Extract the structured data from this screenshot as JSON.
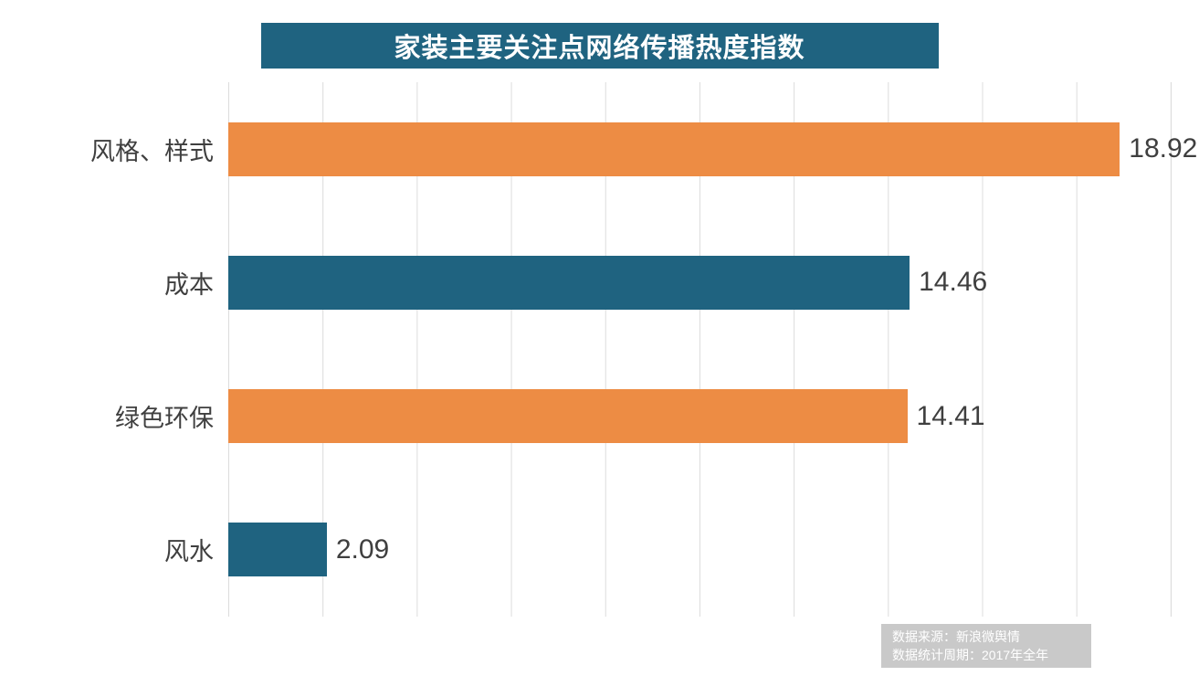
{
  "title_banner": {
    "text": "家装主要关注点网络传播热度指数",
    "background": "#1F6380",
    "text_color": "#FFFFFF"
  },
  "chart_data": {
    "type": "bar",
    "orientation": "horizontal",
    "title": "家装主要关注点网络传播热度指数",
    "categories": [
      "风格、样式",
      "成本",
      "绿色环保",
      "风水"
    ],
    "values": [
      18.92,
      14.46,
      14.41,
      2.09
    ],
    "value_labels": [
      "18.92",
      "14.46",
      "14.41",
      "2.09"
    ],
    "bar_colors": [
      "#ED8C44",
      "#1F6380",
      "#ED8C44",
      "#1F6380"
    ],
    "xlabel": "",
    "ylabel": "",
    "xlim": [
      0,
      20
    ],
    "gridline_interval": 2,
    "grid": true,
    "legend": "none"
  },
  "colors": {
    "orange": "#ED8C44",
    "teal": "#1F6380",
    "gridline": "#DCDCDC",
    "label_text": "#3F3F3F",
    "source_background": "#C9C9C9",
    "source_text": "#FFFFFF"
  },
  "source": {
    "line1": "数据来源：新浪微舆情",
    "line2": "数据统计周期：2017年全年"
  }
}
